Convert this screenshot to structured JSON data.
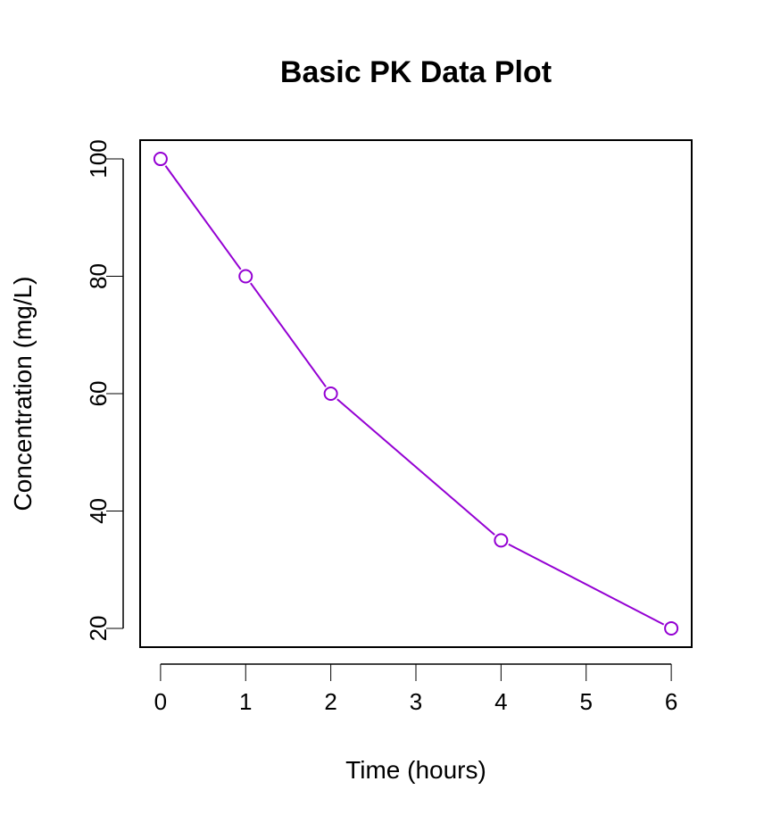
{
  "chart_data": {
    "type": "line",
    "title": "Basic PK Data Plot",
    "xlabel": "Time (hours)",
    "ylabel": "Concentration (mg/L)",
    "xlim": [
      -0.24,
      6.24
    ],
    "ylim": [
      16.8,
      103.2
    ],
    "x_ticks": [
      0,
      1,
      2,
      3,
      4,
      5,
      6
    ],
    "y_ticks": [
      20,
      40,
      60,
      80,
      100
    ],
    "grid": false,
    "series": [
      {
        "x": [
          0,
          1,
          2,
          4,
          6
        ],
        "values": [
          100,
          80,
          60,
          35,
          20
        ],
        "color": "#9400D3",
        "marker": "open-circle"
      }
    ]
  }
}
